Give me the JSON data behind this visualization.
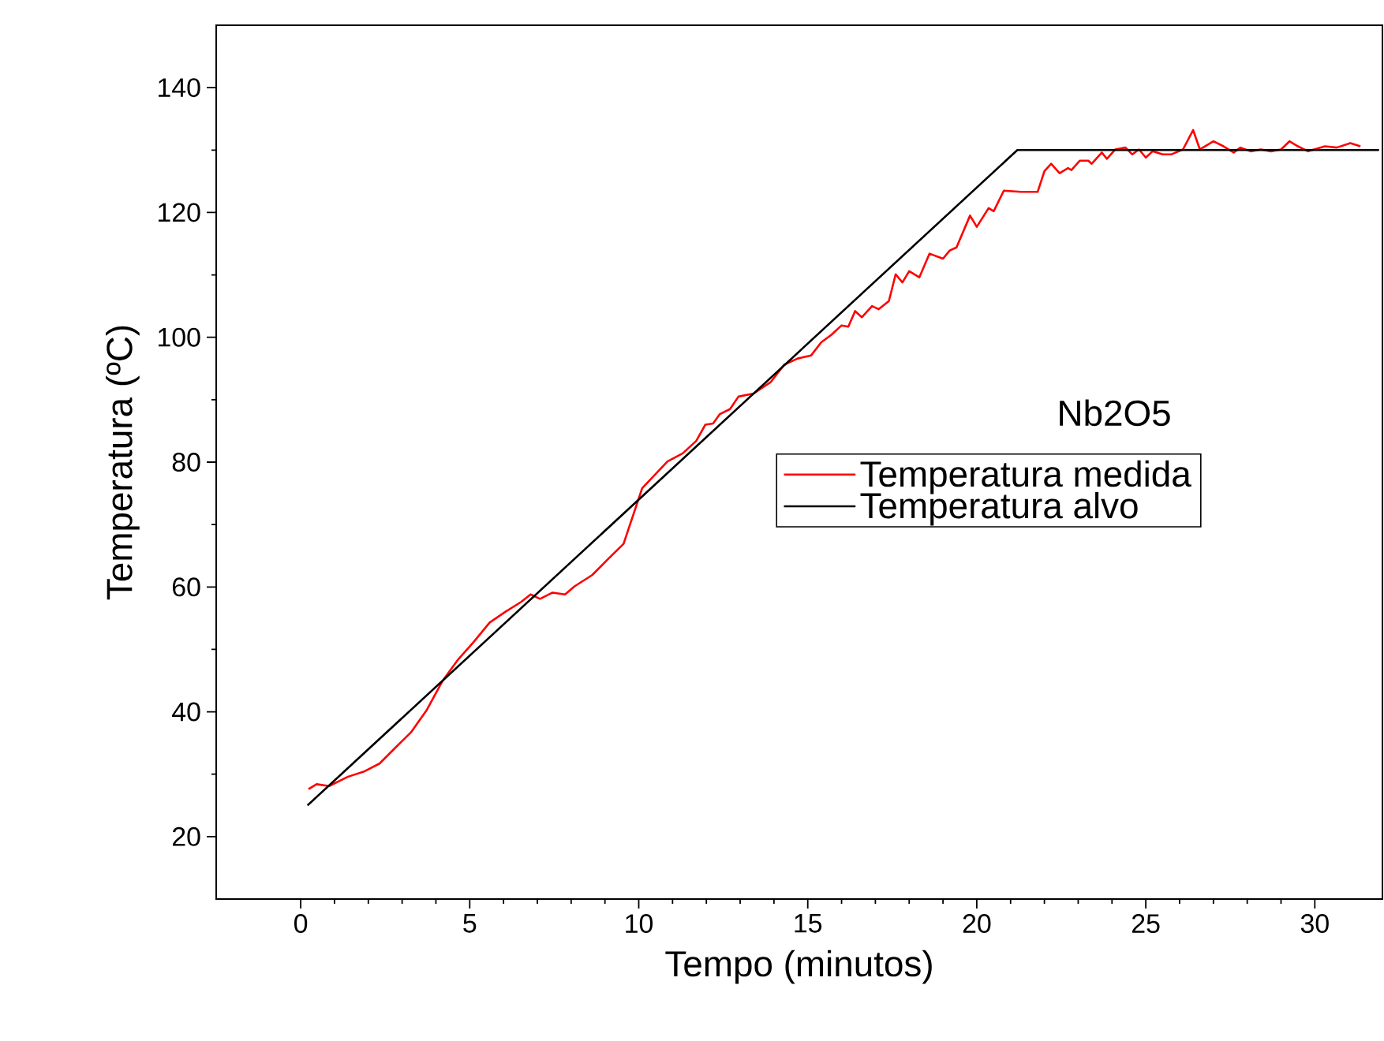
{
  "chart_data": {
    "type": "line",
    "xlabel": "Tempo (minutos)",
    "ylabel": "Temperatura (ºC)",
    "annotations": [
      "Nb2O5"
    ],
    "xlim": [
      -2.5,
      32
    ],
    "ylim": [
      10,
      150
    ],
    "xticks": [
      0,
      5,
      10,
      15,
      20,
      25,
      30
    ],
    "yticks": [
      20,
      40,
      60,
      80,
      100,
      120,
      140
    ],
    "grid": false,
    "legend": "right",
    "marker": "none",
    "line_style": "solid",
    "series": [
      {
        "name": "Temperatura medida",
        "color": "#ff0000",
        "x": [
          0.23,
          0.47,
          0.84,
          1.4,
          1.86,
          2.33,
          2.79,
          3.26,
          3.73,
          4.19,
          4.66,
          5.12,
          5.59,
          6.05,
          6.52,
          6.8,
          7.08,
          7.45,
          7.82,
          8.1,
          8.62,
          9.08,
          9.55,
          10.1,
          10.85,
          11.3,
          11.7,
          11.97,
          12.2,
          12.4,
          12.7,
          12.95,
          13.4,
          13.9,
          14.3,
          14.7,
          15.1,
          15.4,
          15.7,
          16.0,
          16.2,
          16.4,
          16.6,
          16.9,
          17.1,
          17.4,
          17.6,
          17.8,
          18.0,
          18.3,
          18.6,
          19.0,
          19.2,
          19.4,
          19.8,
          20.0,
          20.35,
          20.5,
          20.8,
          21.3,
          21.8,
          22.0,
          22.2,
          22.45,
          22.7,
          22.8,
          23.05,
          23.3,
          23.4,
          23.7,
          23.85,
          24.1,
          24.4,
          24.6,
          24.8,
          25.0,
          25.2,
          25.5,
          25.75,
          26.1,
          26.4,
          26.6,
          27.0,
          27.3,
          27.6,
          27.8,
          28.1,
          28.4,
          28.7,
          29.0,
          29.25,
          29.5,
          29.8,
          30.3,
          30.65,
          31.05,
          31.35
        ],
        "values": [
          27.6,
          28.4,
          28.1,
          29.6,
          30.4,
          31.7,
          34.2,
          36.7,
          40.3,
          44.9,
          48.4,
          51.2,
          54.3,
          56.0,
          57.6,
          58.8,
          58.1,
          59.1,
          58.8,
          60.1,
          61.9,
          64.4,
          66.9,
          75.8,
          80.1,
          81.4,
          83.4,
          86.0,
          86.2,
          87.7,
          88.5,
          90.5,
          91.0,
          92.8,
          95.6,
          96.6,
          97.1,
          99.2,
          100.4,
          101.9,
          101.7,
          104.2,
          103.2,
          105.0,
          104.5,
          105.8,
          110.1,
          108.8,
          110.6,
          109.6,
          113.4,
          112.6,
          113.9,
          114.4,
          119.5,
          117.7,
          120.7,
          120.2,
          123.5,
          123.3,
          123.3,
          126.6,
          127.8,
          126.3,
          127.1,
          126.8,
          128.3,
          128.3,
          127.8,
          129.6,
          128.6,
          130.1,
          130.4,
          129.3,
          130.1,
          128.8,
          129.8,
          129.3,
          129.3,
          130.1,
          133.2,
          130.1,
          131.4,
          130.6,
          129.6,
          130.4,
          129.8,
          130.1,
          129.8,
          130.1,
          131.4,
          130.6,
          129.8,
          130.6,
          130.4,
          131.1,
          130.6
        ]
      },
      {
        "name": "Temperatura alvo",
        "color": "#000000",
        "x": [
          0.2,
          21.2,
          31.9
        ],
        "values": [
          25,
          130,
          130
        ]
      }
    ]
  }
}
